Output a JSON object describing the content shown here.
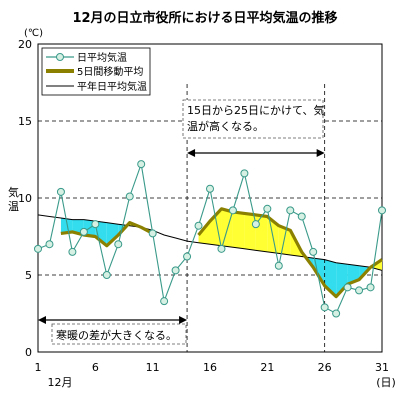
{
  "chart_data": {
    "type": "line",
    "title": "12月の日立市役所における日平均気温の推移",
    "unit": "(℃)",
    "ylabel": "気温",
    "xlabel_month": "12月",
    "x_unit": "(日)",
    "x_ticks": [
      "1",
      "6",
      "11",
      "16",
      "21",
      "26",
      "31"
    ],
    "y_ticks": [
      "0",
      "5",
      "10",
      "15",
      "20"
    ],
    "xlim": [
      1,
      31
    ],
    "ylim": [
      0,
      20
    ],
    "x": [
      1,
      2,
      3,
      4,
      5,
      6,
      7,
      8,
      9,
      10,
      11,
      12,
      13,
      14,
      15,
      16,
      17,
      18,
      19,
      20,
      21,
      22,
      23,
      24,
      25,
      26,
      27,
      28,
      29,
      30,
      31
    ],
    "series": [
      {
        "name": "日平均気温",
        "color": "#3a9a8a",
        "marker": "open-circle",
        "values": [
          6.7,
          7.0,
          10.4,
          6.5,
          7.8,
          8.3,
          5.0,
          7.0,
          10.1,
          12.2,
          7.7,
          3.3,
          5.3,
          6.2,
          8.2,
          10.6,
          6.7,
          9.2,
          11.6,
          8.3,
          9.3,
          5.6,
          9.2,
          8.8,
          6.5,
          2.9,
          2.5,
          4.2,
          4.0,
          4.2,
          9.2
        ]
      },
      {
        "name": "5日間移動平均",
        "color": "#8b8000",
        "values": [
          null,
          null,
          7.7,
          7.8,
          7.6,
          7.5,
          6.9,
          7.6,
          8.4,
          8.1,
          7.7,
          null,
          null,
          null,
          7.6,
          8.5,
          9.3,
          9.1,
          9.0,
          8.9,
          8.8,
          8.2,
          7.9,
          6.5,
          5.5,
          4.3,
          3.6,
          4.4,
          4.7,
          5.5,
          6.0
        ]
      },
      {
        "name": "平年日平均気温",
        "color": "#000000",
        "values": [
          8.9,
          8.8,
          8.7,
          8.6,
          8.6,
          8.5,
          8.4,
          8.3,
          8.2,
          8.1,
          7.9,
          7.6,
          7.4,
          7.2,
          7.1,
          7.0,
          6.9,
          6.8,
          6.7,
          6.6,
          6.5,
          6.4,
          6.3,
          6.2,
          6.1,
          6.0,
          5.8,
          5.7,
          5.6,
          5.5,
          5.3
        ]
      }
    ],
    "fill_above_color": "#ffff33",
    "fill_below_color": "#33ddee",
    "grid": {
      "y_dashed": [
        5,
        10,
        15
      ]
    },
    "legend": {
      "position": "top-left"
    },
    "annotations": [
      {
        "text": "15日から25日にかけて、気温が高くなる。",
        "line1": "15日から25日にかけて、気",
        "line2": "温が高くなる。",
        "x_from": 14,
        "x_to": 26
      },
      {
        "text": "寒暖の差が大きくなる。",
        "line1": "寒暖の差が大きくなる。",
        "x_from": 1,
        "x_to": 14
      }
    ]
  }
}
